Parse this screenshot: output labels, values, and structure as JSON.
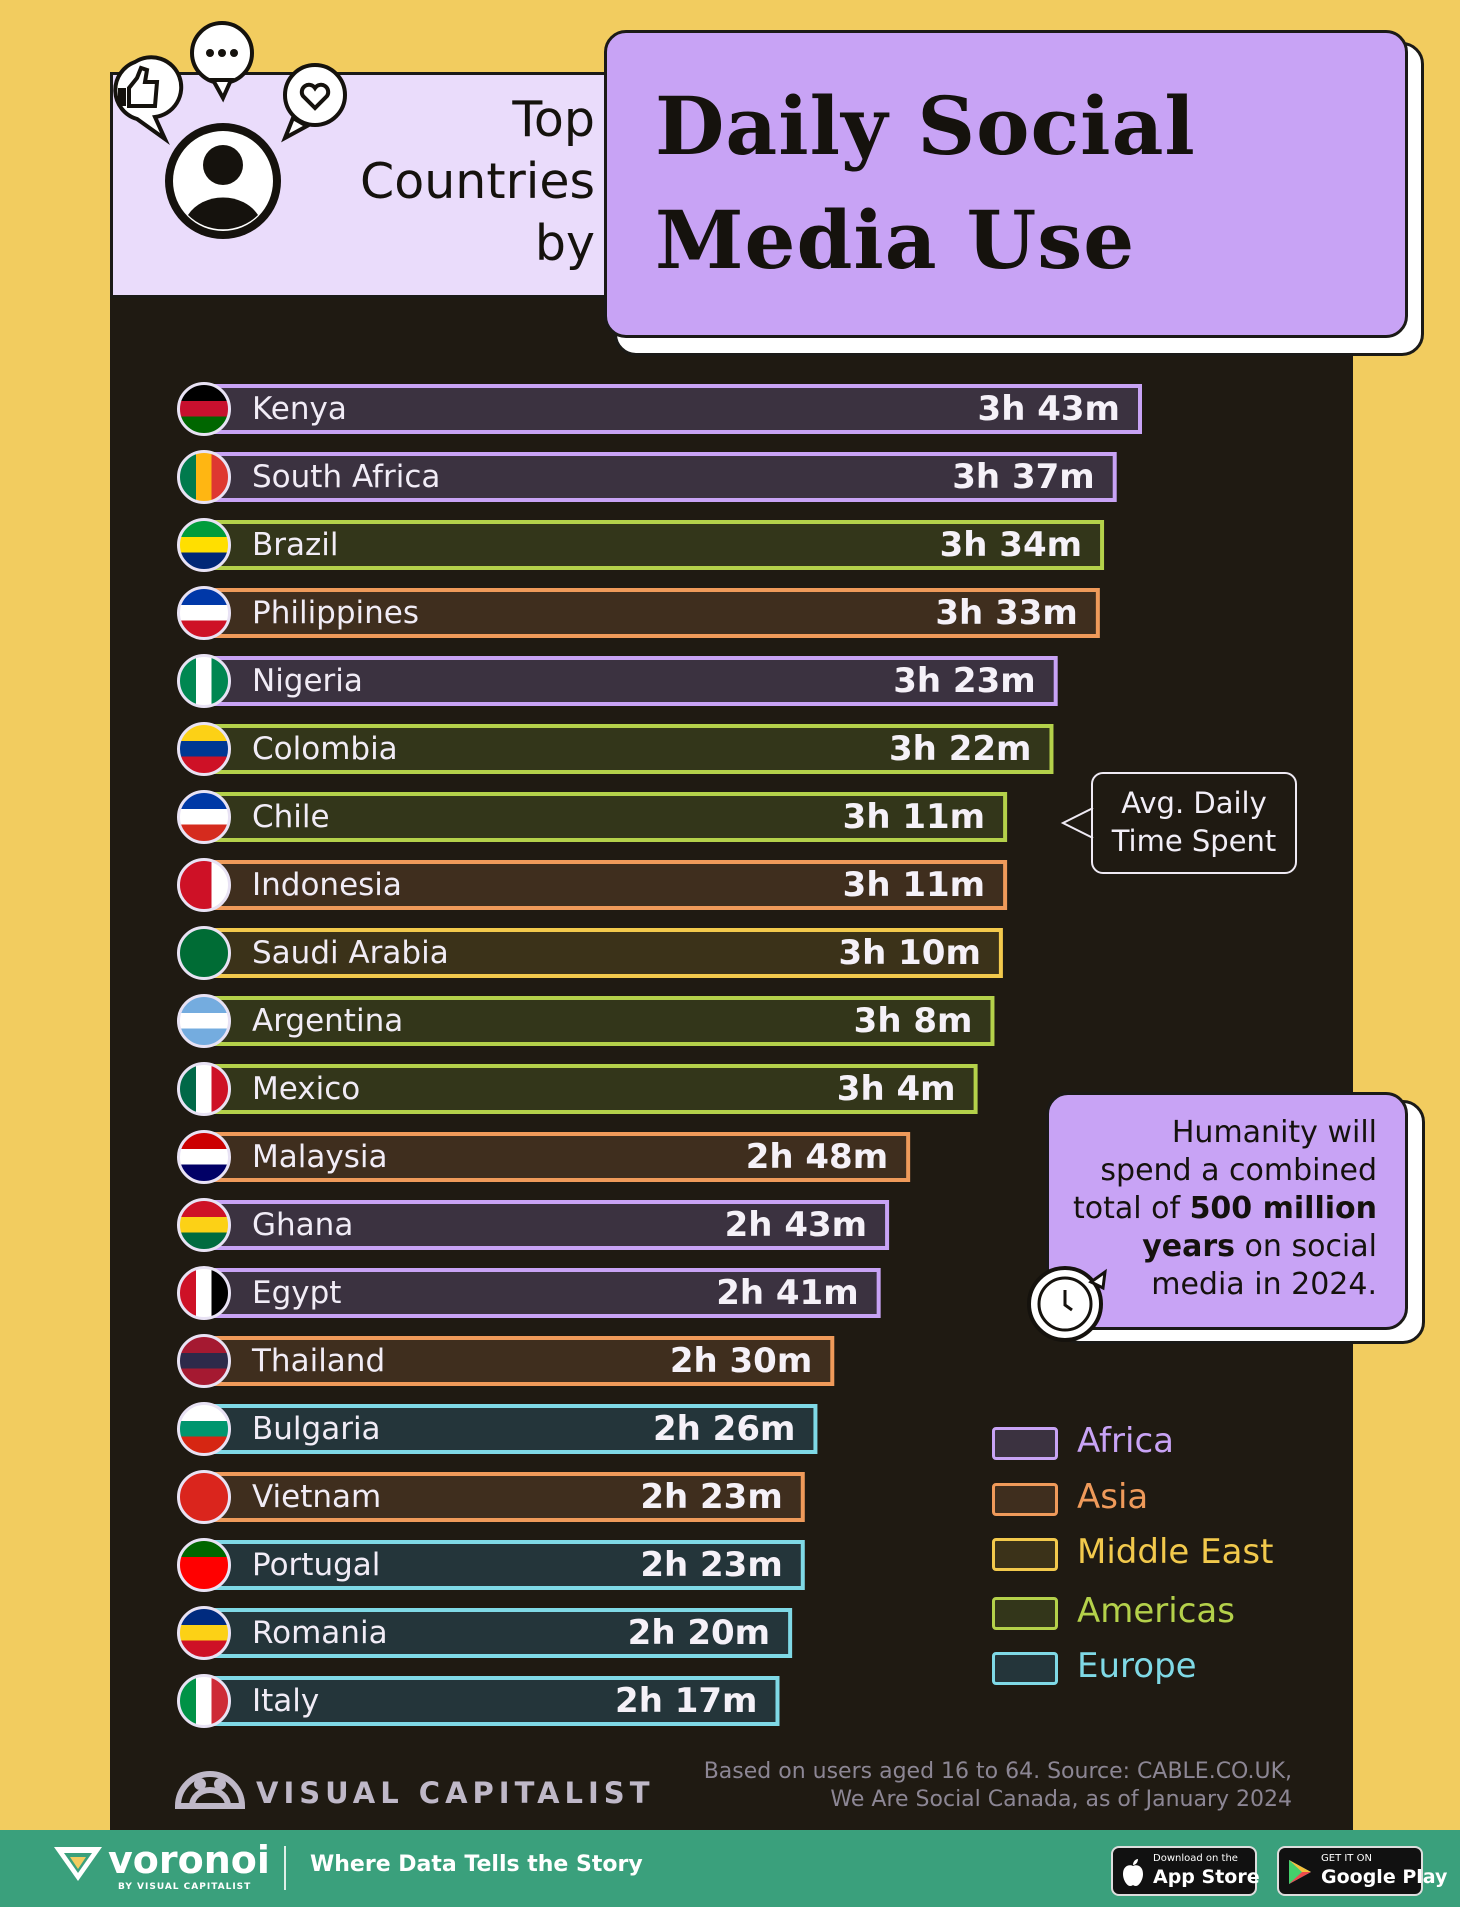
{
  "header": {
    "subtitle_lines": [
      "Top",
      "Countries",
      "by"
    ],
    "title_lines": [
      "Daily Social",
      "Media Use"
    ]
  },
  "chart_data": {
    "type": "bar",
    "orientation": "horizontal",
    "unit": "minutes",
    "categories": [
      "Kenya",
      "South Africa",
      "Brazil",
      "Philippines",
      "Nigeria",
      "Colombia",
      "Chile",
      "Indonesia",
      "Saudi Arabia",
      "Argentina",
      "Mexico",
      "Malaysia",
      "Ghana",
      "Egypt",
      "Thailand",
      "Bulgaria",
      "Vietnam",
      "Portugal",
      "Romania",
      "Italy"
    ],
    "values": [
      223,
      217,
      214,
      213,
      203,
      202,
      191,
      191,
      190,
      188,
      184,
      168,
      163,
      161,
      150,
      146,
      143,
      143,
      140,
      137
    ],
    "labels": [
      "3h 43m",
      "3h 37m",
      "3h 34m",
      "3h 33m",
      "3h 23m",
      "3h 22m",
      "3h 11m",
      "3h 11m",
      "3h 10m",
      "3h 8m",
      "3h 4m",
      "2h 48m",
      "2h 43m",
      "2h 41m",
      "2h 30m",
      "2h 26m",
      "2h 23m",
      "2h 23m",
      "2h 20m",
      "2h 17m"
    ],
    "regions": [
      "Africa",
      "Africa",
      "Americas",
      "Asia",
      "Africa",
      "Americas",
      "Americas",
      "Asia",
      "Middle East",
      "Americas",
      "Americas",
      "Asia",
      "Africa",
      "Africa",
      "Asia",
      "Europe",
      "Asia",
      "Europe",
      "Europe",
      "Europe"
    ],
    "legend": [
      {
        "name": "Africa",
        "color": "#c8a3f5"
      },
      {
        "name": "Asia",
        "color": "#ef9a5a"
      },
      {
        "name": "Middle East",
        "color": "#f2c94c"
      },
      {
        "name": "Americas",
        "color": "#b4d14a"
      },
      {
        "name": "Europe",
        "color": "#7fd9e6"
      }
    ],
    "legend_placement": "bottom-right"
  },
  "callout": {
    "lines": [
      "Avg. Daily",
      "Time Spent"
    ]
  },
  "note": {
    "line1": "Humanity will",
    "line2": "spend a combined",
    "line3_pre": "total of ",
    "line3_bold": "500 million",
    "line4_bold": "years",
    "line4_post": " on social",
    "line5": "media in 2024.",
    "icon": "clock-icon"
  },
  "branding": {
    "logo_text": "VISUAL CAPITALIST",
    "source_line1": "Based on users aged 16 to 64. Source: CABLE.CO.UK,",
    "source_line2": "We Are Social Canada, as of January 2024"
  },
  "footer": {
    "brand": "voronoi",
    "brand_sub": "BY VISUAL CAPITALIST",
    "tagline": "Where Data Tells the Story",
    "app_store_small": "Download on the",
    "app_store_big": "App Store",
    "google_small": "GET IT ON",
    "google_big": "Google Play"
  }
}
